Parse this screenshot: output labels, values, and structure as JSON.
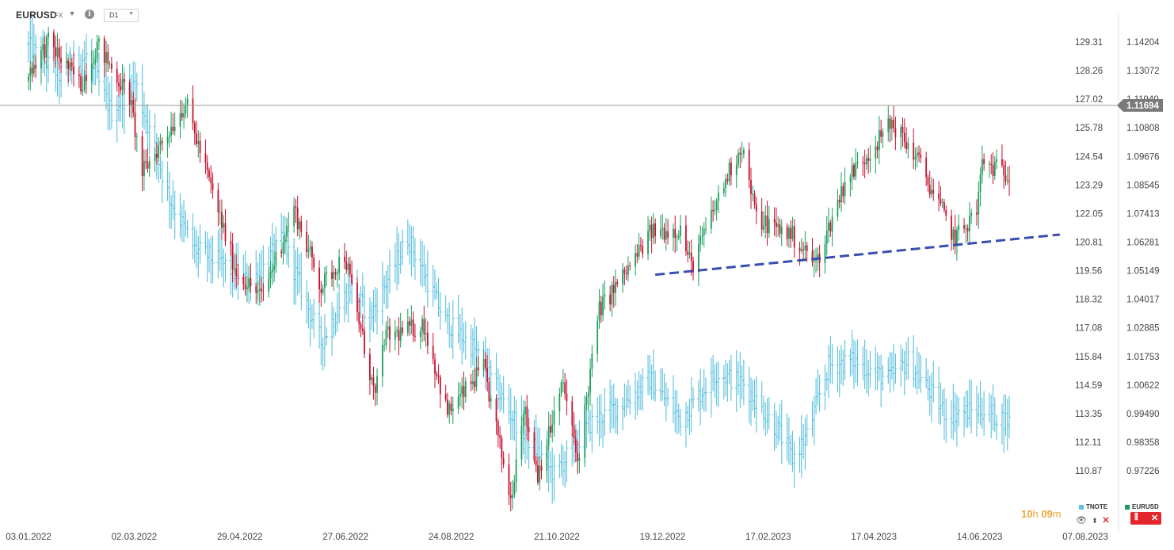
{
  "header": {
    "symbol": "EURUSD",
    "market": "FX",
    "timeframe": "D1"
  },
  "timer": {
    "hours": "10",
    "h_unit": "h",
    "minutes": "09",
    "m_unit": "m"
  },
  "legend": {
    "tnote": {
      "label": "TNOTE",
      "color": "#5bc0de"
    },
    "eurusd": {
      "label": "EURUSD",
      "color": "#1a9e5c"
    }
  },
  "colors": {
    "up": "#1a9e5c",
    "down": "#c8102e",
    "tnote_line": "#5bc0de",
    "trendline": "#3a4db1",
    "price_badge": "#7a7a7a",
    "current_line": "#999999"
  },
  "chart_data": {
    "type": "candlestick",
    "title": "",
    "x_axis": {
      "tick_labels": [
        "03.01.2022",
        "02.03.2022",
        "29.04.2022",
        "27.06.2022",
        "24.08.2022",
        "21.10.2022",
        "19.12.2022",
        "17.02.2023",
        "17.04.2023",
        "14.06.2023",
        "07.08.2023"
      ]
    },
    "y_axis_right": {
      "series": "EURUSD",
      "tick_labels": [
        "1.14204",
        "1.13072",
        "1.11940",
        "1.10808",
        "1.09676",
        "1.08545",
        "1.07413",
        "1.06281",
        "1.05149",
        "1.04017",
        "1.02885",
        "1.01753",
        "1.00622",
        "0.99490",
        "0.98358",
        "0.97226"
      ],
      "range": [
        0.958,
        1.148
      ],
      "current_price": 1.11694,
      "current_price_label": "1.11694"
    },
    "y_axis_left": {
      "series": "TNOTE",
      "tick_labels": [
        "129.31",
        "128.26",
        "127.02",
        "125.78",
        "124.54",
        "123.29",
        "122.05",
        "120.81",
        "119.56",
        "118.32",
        "117.08",
        "115.84",
        "114.59",
        "113.35",
        "112.11",
        "110.87"
      ]
    },
    "series": [
      {
        "name": "EURUSD",
        "style": "candlestick",
        "anchors": [
          {
            "date": "2022-01-03",
            "close": 1.13
          },
          {
            "date": "2022-01-14",
            "close": 1.142
          },
          {
            "date": "2022-02-01",
            "close": 1.125
          },
          {
            "date": "2022-02-10",
            "close": 1.141
          },
          {
            "date": "2022-02-28",
            "close": 1.12
          },
          {
            "date": "2022-03-07",
            "close": 1.09
          },
          {
            "date": "2022-03-31",
            "close": 1.118
          },
          {
            "date": "2022-04-28",
            "close": 1.051
          },
          {
            "date": "2022-05-12",
            "close": 1.041
          },
          {
            "date": "2022-05-30",
            "close": 1.076
          },
          {
            "date": "2022-06-14",
            "close": 1.045
          },
          {
            "date": "2022-06-27",
            "close": 1.058
          },
          {
            "date": "2022-07-14",
            "close": 1.001
          },
          {
            "date": "2022-07-19",
            "close": 1.025
          },
          {
            "date": "2022-08-10",
            "close": 1.03
          },
          {
            "date": "2022-08-23",
            "close": 0.995
          },
          {
            "date": "2022-09-12",
            "close": 1.013
          },
          {
            "date": "2022-09-27",
            "close": 0.961
          },
          {
            "date": "2022-10-04",
            "close": 0.998
          },
          {
            "date": "2022-10-12",
            "close": 0.971
          },
          {
            "date": "2022-10-26",
            "close": 1.007
          },
          {
            "date": "2022-11-03",
            "close": 0.976
          },
          {
            "date": "2022-11-15",
            "close": 1.036
          },
          {
            "date": "2022-12-01",
            "close": 1.052
          },
          {
            "date": "2022-12-14",
            "close": 1.067
          },
          {
            "date": "2022-12-30",
            "close": 1.068
          },
          {
            "date": "2023-01-05",
            "close": 1.053
          },
          {
            "date": "2023-01-26",
            "close": 1.091
          },
          {
            "date": "2023-02-02",
            "close": 1.101
          },
          {
            "date": "2023-02-10",
            "close": 1.072
          },
          {
            "date": "2023-03-01",
            "close": 1.066
          },
          {
            "date": "2023-03-15",
            "close": 1.054
          },
          {
            "date": "2023-03-31",
            "close": 1.087
          },
          {
            "date": "2023-04-14",
            "close": 1.099
          },
          {
            "date": "2023-04-26",
            "close": 1.11
          },
          {
            "date": "2023-05-10",
            "close": 1.096
          },
          {
            "date": "2023-05-31",
            "close": 1.064
          },
          {
            "date": "2023-06-12",
            "close": 1.075
          },
          {
            "date": "2023-06-15",
            "close": 1.094
          },
          {
            "date": "2023-06-30",
            "close": 1.09
          },
          {
            "date": "2023-07-06",
            "close": 1.089
          },
          {
            "date": "2023-07-14",
            "close": 1.123
          }
        ]
      },
      {
        "name": "TNOTE",
        "style": "ohlc-bars",
        "anchors": [
          {
            "date": "2022-01-03",
            "value": 129.1
          },
          {
            "date": "2022-01-20",
            "value": 127.9
          },
          {
            "date": "2022-02-04",
            "value": 128.7
          },
          {
            "date": "2022-02-18",
            "value": 126.3
          },
          {
            "date": "2022-03-03",
            "value": 127.6
          },
          {
            "date": "2022-03-22",
            "value": 122.6
          },
          {
            "date": "2022-04-05",
            "value": 120.4
          },
          {
            "date": "2022-04-20",
            "value": 119.8
          },
          {
            "date": "2022-05-06",
            "value": 118.9
          },
          {
            "date": "2022-05-24",
            "value": 120.8
          },
          {
            "date": "2022-06-14",
            "value": 116.4
          },
          {
            "date": "2022-06-30",
            "value": 118.8
          },
          {
            "date": "2022-07-11",
            "value": 117.5
          },
          {
            "date": "2022-08-01",
            "value": 120.9
          },
          {
            "date": "2022-08-22",
            "value": 117.3
          },
          {
            "date": "2022-09-06",
            "value": 116.2
          },
          {
            "date": "2022-09-27",
            "value": 113.3
          },
          {
            "date": "2022-10-21",
            "value": 110.7
          },
          {
            "date": "2022-11-10",
            "value": 112.9
          },
          {
            "date": "2022-11-30",
            "value": 113.9
          },
          {
            "date": "2022-12-13",
            "value": 114.8
          },
          {
            "date": "2022-12-30",
            "value": 113.1
          },
          {
            "date": "2023-01-19",
            "value": 115.1
          },
          {
            "date": "2023-02-03",
            "value": 114.6
          },
          {
            "date": "2023-02-22",
            "value": 112.6
          },
          {
            "date": "2023-03-02",
            "value": 111.4
          },
          {
            "date": "2023-03-10",
            "value": 112.4
          },
          {
            "date": "2023-03-22",
            "value": 115.4
          },
          {
            "date": "2023-04-05",
            "value": 115.6
          },
          {
            "date": "2023-04-24",
            "value": 114.8
          },
          {
            "date": "2023-05-05",
            "value": 115.6
          },
          {
            "date": "2023-05-26",
            "value": 113.3
          },
          {
            "date": "2023-06-14",
            "value": 113.5
          },
          {
            "date": "2023-06-30",
            "value": 113.0
          },
          {
            "date": "2023-07-10",
            "value": 111.1
          },
          {
            "date": "2023-07-14",
            "value": 112.9
          }
        ]
      },
      {
        "name": "trendline",
        "style": "dashed-line",
        "points": [
          {
            "date": "2022-12-16",
            "value": 1.0499
          },
          {
            "date": "2023-07-28",
            "value": 1.0658
          }
        ]
      }
    ],
    "grid": false,
    "legend_position": "bottom-right"
  }
}
